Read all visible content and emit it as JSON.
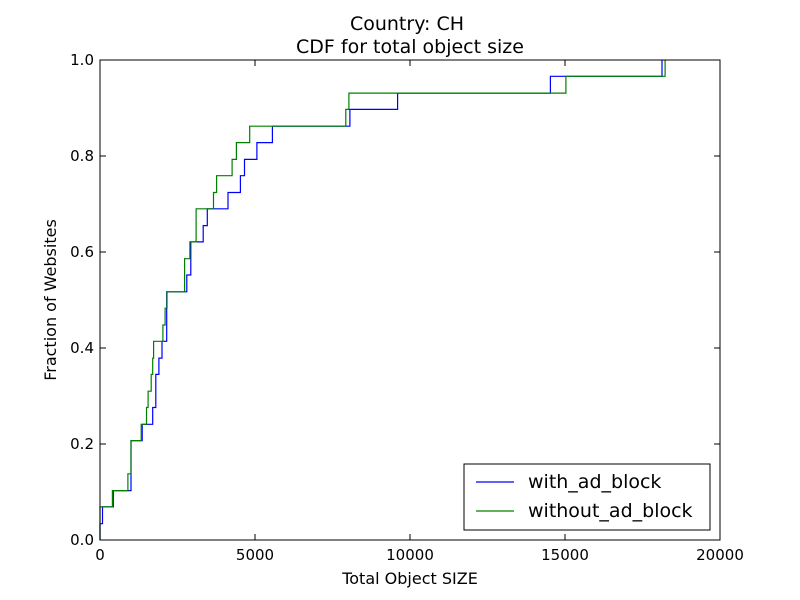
{
  "chart_data": {
    "type": "line",
    "title": "Country: CH",
    "subtitle": "CDF for total object size",
    "xlabel": "Total Object SIZE",
    "ylabel": "Fraction of Websites",
    "xlim": [
      0,
      20000
    ],
    "ylim": [
      0,
      1.0
    ],
    "x_ticks": [
      "0",
      "5000",
      "10000",
      "15000",
      "20000"
    ],
    "y_ticks": [
      "0.0",
      "0.2",
      "0.4",
      "0.6",
      "0.8",
      "1.0"
    ],
    "grid": false,
    "legend_position": "bottom-right",
    "step": true,
    "series": [
      {
        "name": "with_ad_block",
        "color": "#0000ff",
        "points": [
          [
            0,
            0.0
          ],
          [
            0,
            0.034
          ],
          [
            80,
            0.034
          ],
          [
            80,
            0.069
          ],
          [
            430,
            0.069
          ],
          [
            430,
            0.103
          ],
          [
            1000,
            0.103
          ],
          [
            1000,
            0.207
          ],
          [
            1360,
            0.207
          ],
          [
            1360,
            0.241
          ],
          [
            1700,
            0.241
          ],
          [
            1700,
            0.276
          ],
          [
            1800,
            0.276
          ],
          [
            1800,
            0.345
          ],
          [
            1900,
            0.345
          ],
          [
            1900,
            0.379
          ],
          [
            2000,
            0.379
          ],
          [
            2000,
            0.414
          ],
          [
            2150,
            0.414
          ],
          [
            2150,
            0.517
          ],
          [
            2800,
            0.517
          ],
          [
            2800,
            0.552
          ],
          [
            2930,
            0.552
          ],
          [
            2930,
            0.621
          ],
          [
            3330,
            0.621
          ],
          [
            3330,
            0.655
          ],
          [
            3460,
            0.655
          ],
          [
            3460,
            0.69
          ],
          [
            4130,
            0.69
          ],
          [
            4130,
            0.724
          ],
          [
            4530,
            0.724
          ],
          [
            4530,
            0.759
          ],
          [
            4660,
            0.759
          ],
          [
            4660,
            0.793
          ],
          [
            5060,
            0.793
          ],
          [
            5060,
            0.828
          ],
          [
            5560,
            0.828
          ],
          [
            5560,
            0.862
          ],
          [
            8060,
            0.862
          ],
          [
            8060,
            0.897
          ],
          [
            9600,
            0.897
          ],
          [
            9600,
            0.931
          ],
          [
            14530,
            0.931
          ],
          [
            14530,
            0.966
          ],
          [
            18130,
            0.966
          ],
          [
            18130,
            1.0
          ]
        ]
      },
      {
        "name": "without_ad_block",
        "color": "#008000",
        "points": [
          [
            0,
            0.0
          ],
          [
            0,
            0.069
          ],
          [
            400,
            0.069
          ],
          [
            400,
            0.103
          ],
          [
            900,
            0.103
          ],
          [
            900,
            0.138
          ],
          [
            1000,
            0.138
          ],
          [
            1000,
            0.207
          ],
          [
            1330,
            0.207
          ],
          [
            1330,
            0.241
          ],
          [
            1500,
            0.241
          ],
          [
            1500,
            0.276
          ],
          [
            1550,
            0.276
          ],
          [
            1550,
            0.31
          ],
          [
            1650,
            0.31
          ],
          [
            1650,
            0.345
          ],
          [
            1700,
            0.345
          ],
          [
            1700,
            0.379
          ],
          [
            1730,
            0.379
          ],
          [
            1730,
            0.414
          ],
          [
            2030,
            0.414
          ],
          [
            2030,
            0.448
          ],
          [
            2100,
            0.448
          ],
          [
            2100,
            0.483
          ],
          [
            2160,
            0.483
          ],
          [
            2160,
            0.517
          ],
          [
            2730,
            0.517
          ],
          [
            2730,
            0.586
          ],
          [
            2900,
            0.586
          ],
          [
            2900,
            0.621
          ],
          [
            3100,
            0.621
          ],
          [
            3100,
            0.69
          ],
          [
            3660,
            0.69
          ],
          [
            3660,
            0.724
          ],
          [
            3760,
            0.724
          ],
          [
            3760,
            0.759
          ],
          [
            3860,
            0.759
          ],
          [
            3860,
            0.759
          ],
          [
            4260,
            0.759
          ],
          [
            4260,
            0.793
          ],
          [
            4400,
            0.793
          ],
          [
            4400,
            0.828
          ],
          [
            4830,
            0.828
          ],
          [
            4830,
            0.862
          ],
          [
            7930,
            0.862
          ],
          [
            7930,
            0.897
          ],
          [
            8030,
            0.897
          ],
          [
            8030,
            0.931
          ],
          [
            15030,
            0.931
          ],
          [
            15030,
            0.966
          ],
          [
            18230,
            0.966
          ],
          [
            18230,
            1.0
          ]
        ]
      }
    ]
  }
}
